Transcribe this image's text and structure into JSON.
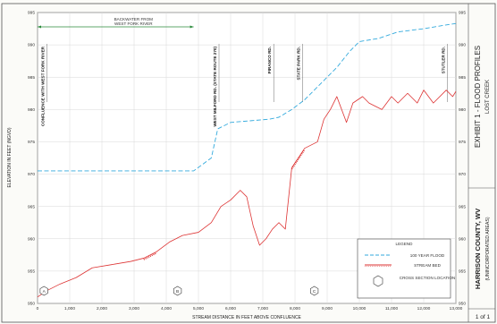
{
  "chart_data": {
    "type": "line",
    "title": "EXHIBIT 1 - FLOOD PROFILES",
    "subtitle": "LOST CREEK",
    "county": "HARRISON COUNTY, WV",
    "county_sub": "(UNINCORPORATED AREAS)",
    "sheet_number": "1 of 1",
    "xlabel": "STREAM DISTANCE IN FEET ABOVE CONFLUENCE",
    "ylabel": "ELEVATION IN FEET (NGVD)",
    "xlim": [
      0,
      13000
    ],
    "ylim": [
      950,
      995
    ],
    "xticks": [
      {
        "v": 0,
        "label": "0"
      },
      {
        "v": 1000,
        "label": "1,000"
      },
      {
        "v": 2000,
        "label": "2,000"
      },
      {
        "v": 3000,
        "label": "3,000"
      },
      {
        "v": 4000,
        "label": "4,000"
      },
      {
        "v": 5000,
        "label": "5,000"
      },
      {
        "v": 6000,
        "label": "6,000"
      },
      {
        "v": 7000,
        "label": "7,000"
      },
      {
        "v": 8000,
        "label": "8,000"
      },
      {
        "v": 9000,
        "label": "9,000"
      },
      {
        "v": 10000,
        "label": "10,000"
      },
      {
        "v": 11000,
        "label": "11,000"
      },
      {
        "v": 12000,
        "label": "12,000"
      },
      {
        "v": 13000,
        "label": "13,000"
      }
    ],
    "yticks": [
      {
        "v": 950,
        "label": "950"
      },
      {
        "v": 955,
        "label": "955"
      },
      {
        "v": 960,
        "label": "960"
      },
      {
        "v": 965,
        "label": "965"
      },
      {
        "v": 970,
        "label": "970"
      },
      {
        "v": 975,
        "label": "975"
      },
      {
        "v": 980,
        "label": "980"
      },
      {
        "v": 985,
        "label": "985"
      },
      {
        "v": 990,
        "label": "990"
      },
      {
        "v": 995,
        "label": "995"
      }
    ],
    "series": [
      {
        "name": "100 YEAR FLOOD",
        "color": "#33aadd",
        "style": "dashed",
        "x": [
          0,
          4850,
          5400,
          5600,
          6000,
          7200,
          7500,
          7900,
          8300,
          8700,
          9000,
          9300,
          9700,
          10000,
          10600,
          11200,
          12000,
          12600,
          13000
        ],
        "y": [
          970.5,
          970.5,
          972.5,
          977,
          978,
          978.5,
          978.8,
          980,
          981.5,
          983.5,
          985,
          986.5,
          989,
          990.5,
          991,
          992,
          992.5,
          993,
          993.3
        ]
      },
      {
        "name": "STREAM BED",
        "color": "#dd3333",
        "style": "solid",
        "x": [
          0,
          300,
          700,
          1200,
          1700,
          2300,
          2900,
          3300,
          3700,
          4100,
          4500,
          5000,
          5400,
          5700,
          6000,
          6300,
          6500,
          6700,
          6900,
          7100,
          7300,
          7500,
          7700,
          7900,
          8300,
          8700,
          8900,
          9100,
          9300,
          9600,
          9800,
          10100,
          10300,
          10700,
          11000,
          11200,
          11500,
          11800,
          12000,
          12300,
          12700,
          12900,
          13000
        ],
        "y": [
          951.0,
          952.0,
          953.0,
          954.0,
          955.5,
          956.0,
          956.5,
          957.0,
          958.0,
          959.5,
          960.5,
          961.0,
          962.5,
          965,
          966,
          967.5,
          966.5,
          962,
          959,
          960,
          961.5,
          962.5,
          961.5,
          971,
          974,
          975,
          978.5,
          980,
          982,
          978,
          981,
          982,
          981,
          980,
          982,
          981,
          982.5,
          981,
          983,
          981,
          983,
          982,
          982.8
        ]
      }
    ],
    "fill_series": {
      "name": "STREAM BED (hatched segments)",
      "segments": [
        [
          3200,
          3700
        ],
        [
          7900,
          8600
        ]
      ]
    },
    "backwater": {
      "label_line1": "BACKWATER FROM",
      "label_line2": "WEST FORK RIVER",
      "x_start": 0,
      "x_end": 4850
    },
    "structures": [
      {
        "x": 150,
        "label": "CONFLUENCE WITH WEST FORK RIVER"
      },
      {
        "x": 5500,
        "label": "WEST MILFORD RD. (STATE ROUTE 270)"
      },
      {
        "x": 7200,
        "label": "PIRANCO RD."
      },
      {
        "x": 8100,
        "label": "STATE PARK RD."
      },
      {
        "x": 12600,
        "label": "STUTLER RD."
      }
    ],
    "cross_sections": [
      {
        "x": 200,
        "letter": "A"
      },
      {
        "x": 4350,
        "letter": "B"
      },
      {
        "x": 8600,
        "letter": "C"
      }
    ],
    "legend": {
      "title": "LEGEND",
      "items": [
        {
          "label": "100 YEAR FLOOD",
          "kind": "dashed"
        },
        {
          "label": "STREAM BED",
          "kind": "hatched"
        },
        {
          "label": "CROSS SECTION LOCATION",
          "kind": "hexagon"
        }
      ]
    }
  }
}
